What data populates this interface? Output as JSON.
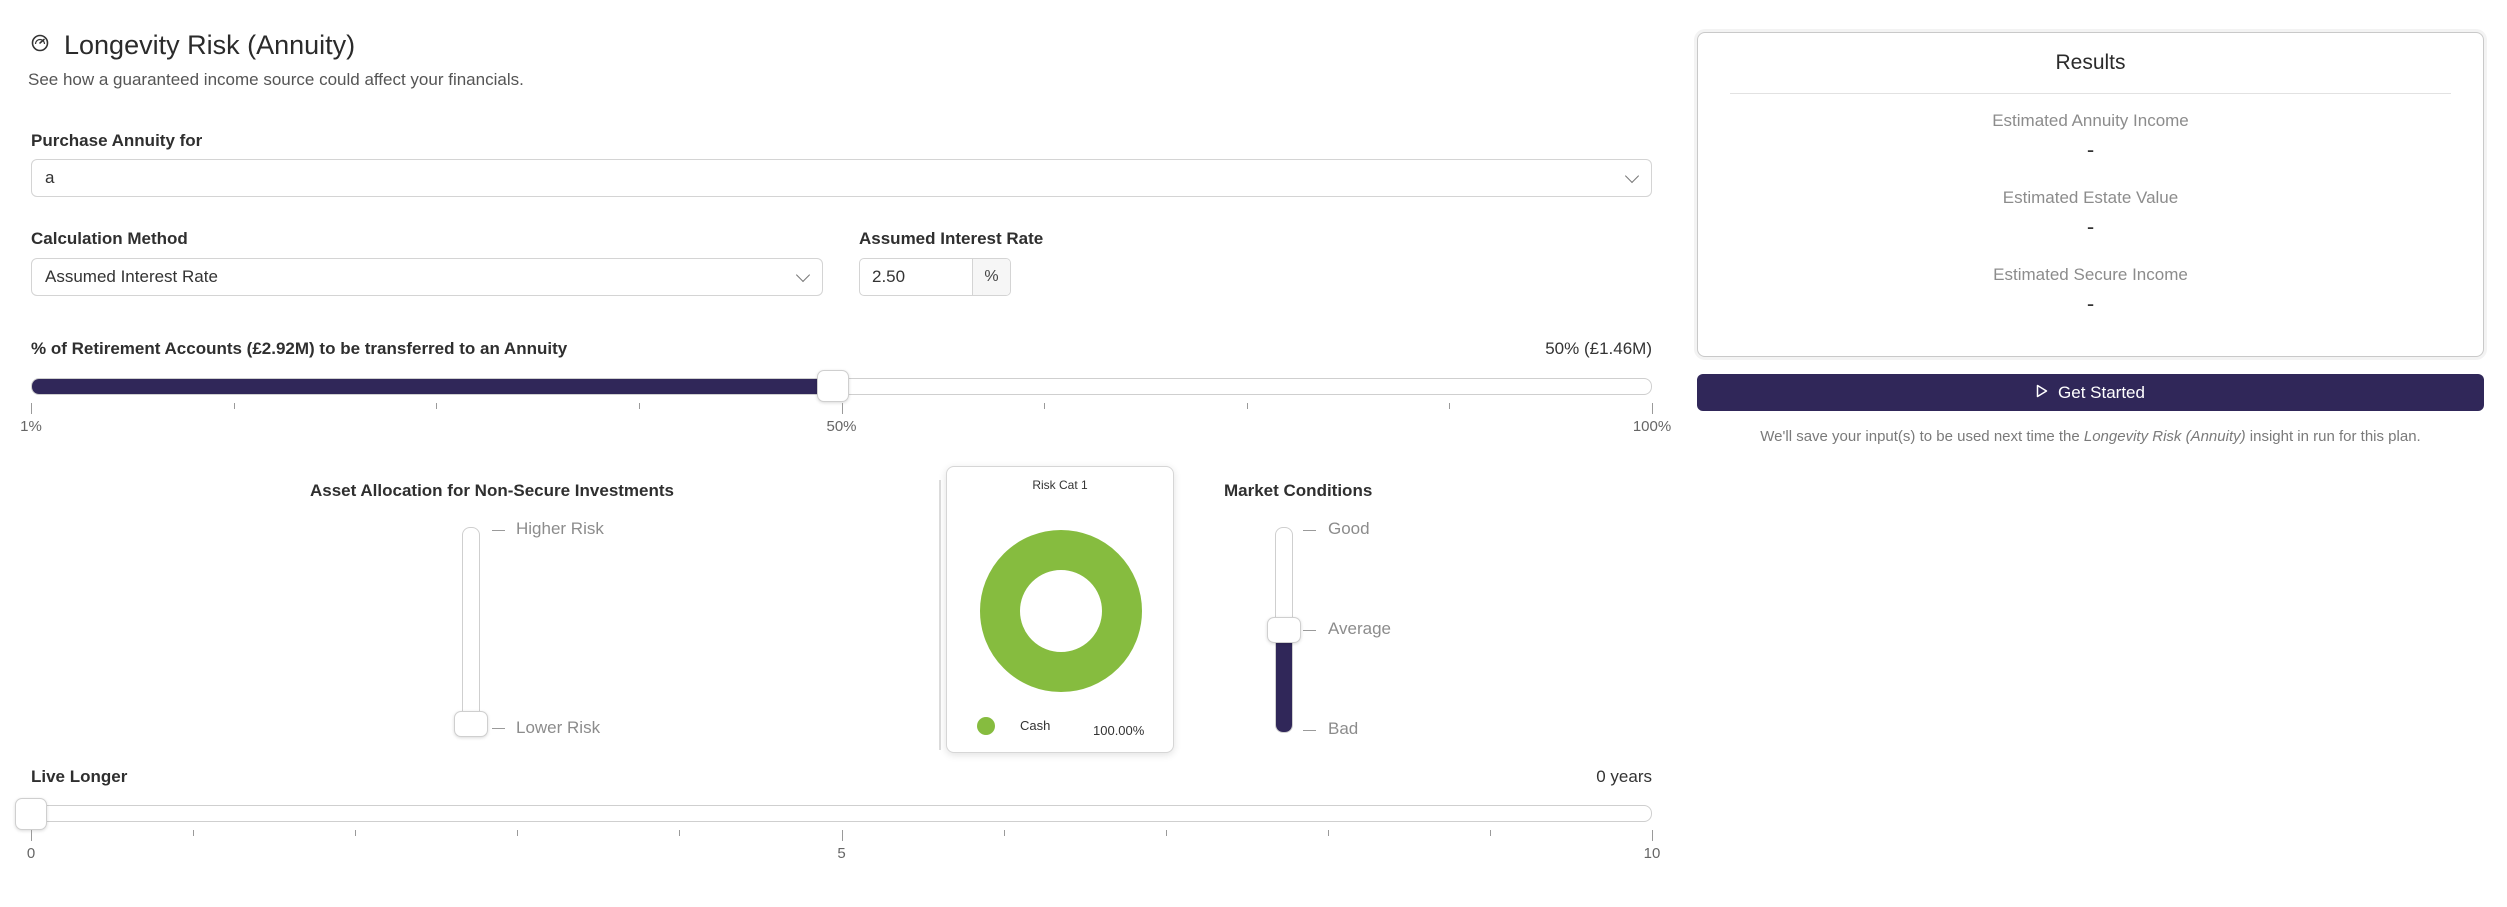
{
  "header": {
    "title": "Longevity Risk (Annuity)",
    "subtitle": "See how a guaranteed income source could affect your financials.",
    "icon": "gauge-icon"
  },
  "purchase": {
    "label": "Purchase Annuity for",
    "value": "a"
  },
  "calculation": {
    "label": "Calculation Method",
    "value": "Assumed Interest Rate"
  },
  "interest": {
    "label": "Assumed Interest Rate",
    "value": "2.50",
    "unit": "%"
  },
  "transfer_slider": {
    "label": "% of Retirement Accounts (£2.92M) to be transferred to an Annuity",
    "readout": "50% (£1.46M)",
    "value": 50,
    "min": 1,
    "max": 100,
    "tick_labels": [
      "1%",
      "50%",
      "100%"
    ]
  },
  "allocation": {
    "title": "Asset Allocation for Non-Secure Investments",
    "top_label": "Higher Risk",
    "bottom_label": "Lower Risk",
    "level": 0
  },
  "risk_popover": {
    "title": "Risk Cat 1",
    "legend": [
      {
        "name": "Cash",
        "value": "100.00%",
        "color": "#86bc3f"
      }
    ],
    "chart_data": {
      "type": "pie",
      "categories": [
        "Cash"
      ],
      "values": [
        100
      ],
      "title": "Risk Cat 1"
    }
  },
  "market": {
    "title": "Market Conditions",
    "labels": [
      "Good",
      "Average",
      "Bad"
    ],
    "level": 0.5
  },
  "live_longer": {
    "label": "Live Longer",
    "readout": "0 years",
    "value": 0,
    "min": 0,
    "max": 10,
    "tick_labels": [
      "0",
      "5",
      "10"
    ]
  },
  "results": {
    "title": "Results",
    "items": [
      {
        "label": "Estimated Annuity Income",
        "value": "-"
      },
      {
        "label": "Estimated Estate Value",
        "value": "-"
      },
      {
        "label": "Estimated Secure Income",
        "value": "-"
      }
    ]
  },
  "action": {
    "label": "Get Started",
    "icon": "play-icon"
  },
  "note": {
    "before": "We'll save your input(s) to be used next time the",
    "insight": "Longevity Risk (Annuity)",
    "after": "insight in run for this plan."
  },
  "colors": {
    "accent": "#302759",
    "chart_green": "#86bc3f"
  }
}
